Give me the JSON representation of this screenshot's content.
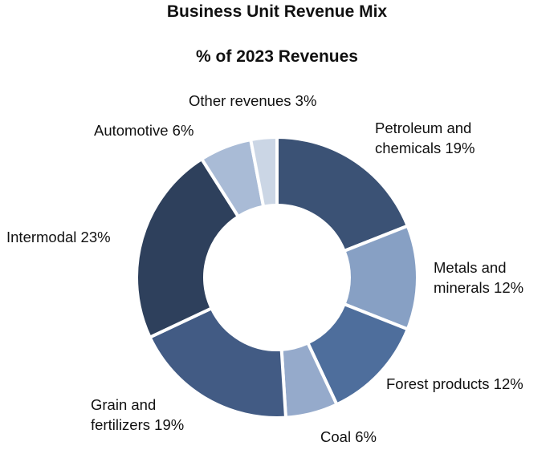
{
  "chart_data": {
    "type": "pie",
    "subtype": "donut",
    "title": "Business Unit Revenue Mix",
    "subtitle": "% of 2023 Revenues",
    "start_angle": "12 o'clock, clockwise",
    "unit": "%",
    "categories": [
      "Petroleum and chemicals",
      "Metals and minerals",
      "Forest products",
      "Coal",
      "Grain and fertilizers",
      "Intermodal",
      "Automotive",
      "Other revenues"
    ],
    "values": [
      19,
      12,
      12,
      6,
      19,
      23,
      6,
      3
    ],
    "colors": [
      "#3b5275",
      "#87a0c4",
      "#4e6e9c",
      "#95aacb",
      "#425b84",
      "#2e405c",
      "#a9bbd6",
      "#cbd6e5"
    ],
    "legend": "none (direct labels)",
    "grid": false
  },
  "labels": [
    {
      "line1": "Petroleum and",
      "line2": "chemicals 19%"
    },
    {
      "line1": "Metals and",
      "line2": "minerals 12%"
    },
    {
      "line1": "Forest products 12%",
      "line2": ""
    },
    {
      "line1": "Coal 6%",
      "line2": ""
    },
    {
      "line1": "Grain and",
      "line2": "fertilizers 19%"
    },
    {
      "line1": "Intermodal 23%",
      "line2": ""
    },
    {
      "line1": "Automotive 6%",
      "line2": ""
    },
    {
      "line1": "Other revenues 3%",
      "line2": ""
    }
  ]
}
